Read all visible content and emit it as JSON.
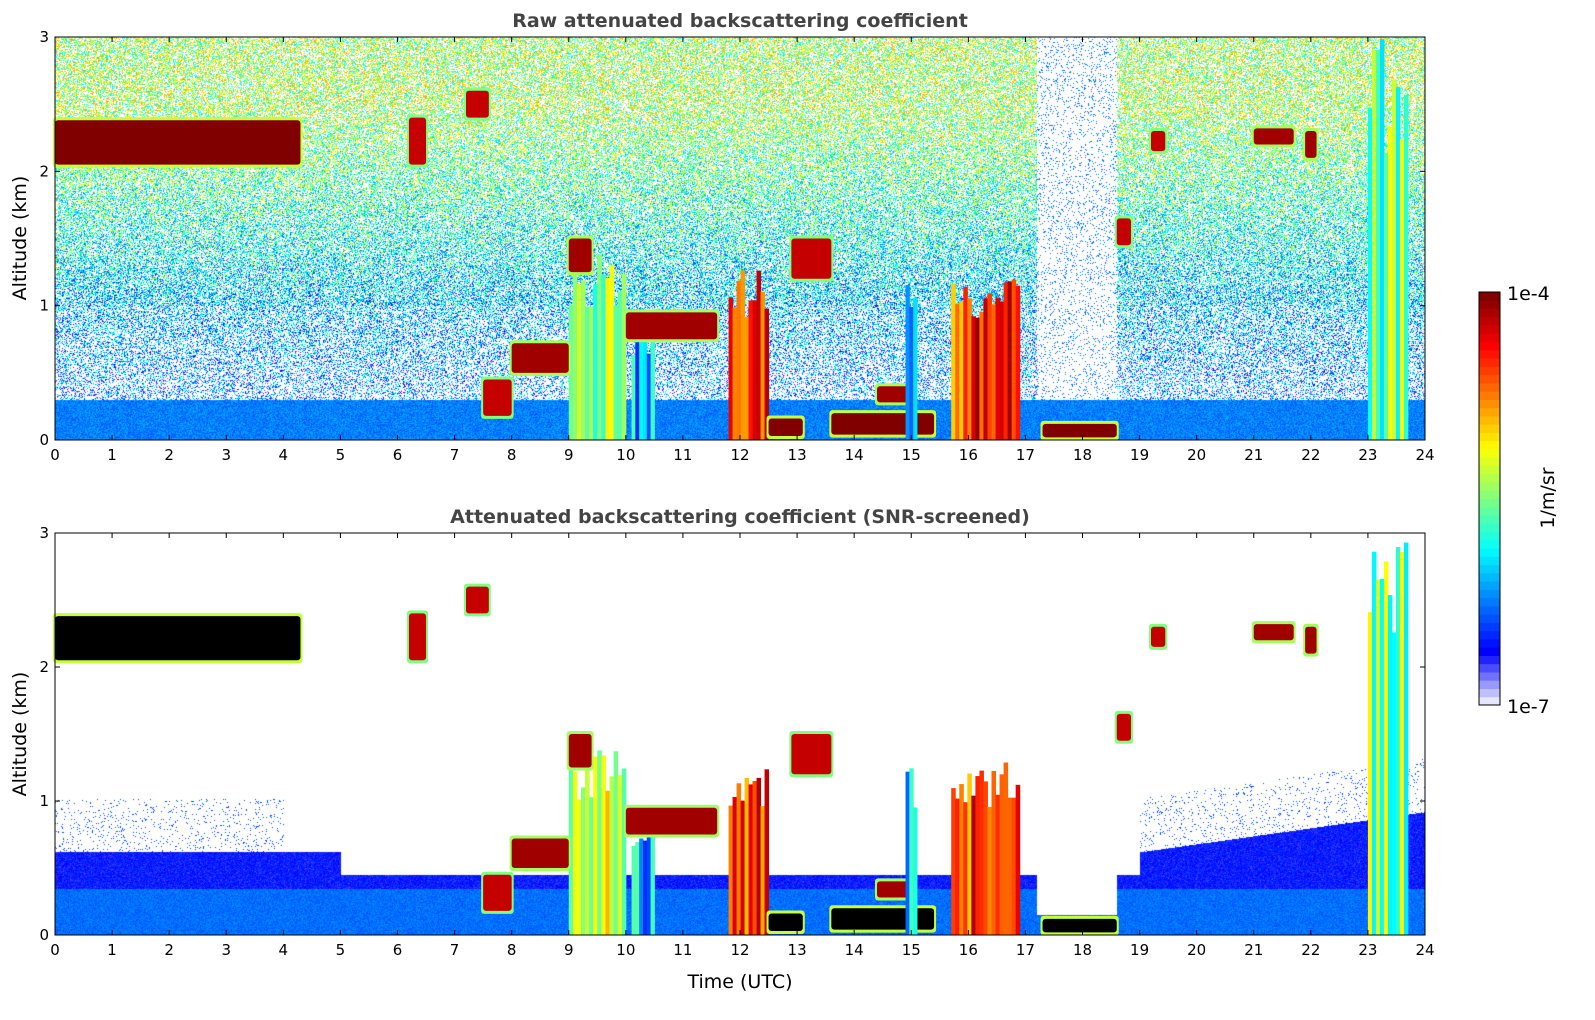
{
  "chart_data": [
    {
      "type": "heatmap",
      "title": "Raw attenuated backscattering coefficient",
      "xlabel": "",
      "ylabel": "Altitude (km)",
      "xlim": [
        0,
        24
      ],
      "ylim": [
        0,
        3
      ],
      "xticks": [
        "0",
        "1",
        "2",
        "3",
        "4",
        "5",
        "6",
        "7",
        "8",
        "9",
        "10",
        "11",
        "12",
        "13",
        "14",
        "15",
        "16",
        "17",
        "18",
        "19",
        "20",
        "21",
        "22",
        "23",
        "24"
      ],
      "yticks": [
        "0",
        "1",
        "2",
        "3"
      ],
      "screened": false
    },
    {
      "type": "heatmap",
      "title": "Attenuated backscattering coefficient (SNR-screened)",
      "xlabel": "Time (UTC)",
      "ylabel": "Altitude (km)",
      "xlim": [
        0,
        24
      ],
      "ylim": [
        0,
        3
      ],
      "xticks": [
        "0",
        "1",
        "2",
        "3",
        "4",
        "5",
        "6",
        "7",
        "8",
        "9",
        "10",
        "11",
        "12",
        "13",
        "14",
        "15",
        "16",
        "17",
        "18",
        "19",
        "20",
        "21",
        "22",
        "23",
        "24"
      ],
      "yticks": [
        "0",
        "1",
        "2",
        "3"
      ],
      "screened": true
    }
  ],
  "colorbar": {
    "label": "1/m/sr",
    "min_label": "1e-7",
    "max_label": "1e-4",
    "min": 1e-07,
    "max": 0.0001,
    "scale": "log",
    "colormap": "jet"
  },
  "features": [
    {
      "t": [
        0,
        4.3
      ],
      "alt": [
        2.05,
        2.38
      ],
      "log": -4.0,
      "kind": "cirrus"
    },
    {
      "t": [
        6.2,
        6.5
      ],
      "alt": [
        2.05,
        2.4
      ],
      "log": -4.2,
      "kind": "cloud"
    },
    {
      "t": [
        7.2,
        7.6
      ],
      "alt": [
        2.4,
        2.6
      ],
      "log": -4.2,
      "kind": "cloud"
    },
    {
      "t": [
        9.0,
        10.0
      ],
      "alt": [
        0,
        1.4
      ],
      "log": -5.4,
      "kind": "column"
    },
    {
      "t": [
        10.1,
        10.5
      ],
      "alt": [
        0,
        0.9
      ],
      "log": -6.0,
      "kind": "column"
    },
    {
      "t": [
        7.5,
        8.0
      ],
      "alt": [
        0.18,
        0.45
      ],
      "log": -4.2,
      "kind": "cloud"
    },
    {
      "t": [
        8.0,
        9.0
      ],
      "alt": [
        0.5,
        0.72
      ],
      "log": -4.1,
      "kind": "cloud"
    },
    {
      "t": [
        9.0,
        9.4
      ],
      "alt": [
        1.25,
        1.5
      ],
      "log": -4.1,
      "kind": "cloud"
    },
    {
      "t": [
        10.0,
        11.6
      ],
      "alt": [
        0.75,
        0.95
      ],
      "log": -4.1,
      "kind": "cloud"
    },
    {
      "t": [
        11.8,
        12.5
      ],
      "alt": [
        0,
        1.3
      ],
      "log": -4.6,
      "kind": "column"
    },
    {
      "t": [
        12.5,
        13.1
      ],
      "alt": [
        0.03,
        0.16
      ],
      "log": -4.0,
      "kind": "cloud"
    },
    {
      "t": [
        12.9,
        13.6
      ],
      "alt": [
        1.2,
        1.5
      ],
      "log": -4.2,
      "kind": "cloud"
    },
    {
      "t": [
        13.6,
        15.4
      ],
      "alt": [
        0.04,
        0.2
      ],
      "log": -4.0,
      "kind": "cloud"
    },
    {
      "t": [
        14.4,
        15.0
      ],
      "alt": [
        0.28,
        0.4
      ],
      "log": -4.1,
      "kind": "cloud"
    },
    {
      "t": [
        14.9,
        15.1
      ],
      "alt": [
        0,
        1.3
      ],
      "log": -6.0,
      "kind": "column"
    },
    {
      "t": [
        15.7,
        16.9
      ],
      "alt": [
        0,
        1.3
      ],
      "log": -4.5,
      "kind": "column"
    },
    {
      "t": [
        17.3,
        18.6
      ],
      "alt": [
        0.02,
        0.12
      ],
      "log": -4.0,
      "kind": "cloud"
    },
    {
      "t": [
        18.6,
        18.85
      ],
      "alt": [
        1.45,
        1.65
      ],
      "log": -4.2,
      "kind": "cloud"
    },
    {
      "t": [
        19.2,
        19.45
      ],
      "alt": [
        2.15,
        2.3
      ],
      "log": -4.2,
      "kind": "cloud"
    },
    {
      "t": [
        21.0,
        21.7
      ],
      "alt": [
        2.2,
        2.32
      ],
      "log": -4.1,
      "kind": "cloud"
    },
    {
      "t": [
        21.9,
        22.1
      ],
      "alt": [
        2.1,
        2.3
      ],
      "log": -4.1,
      "kind": "cloud"
    },
    {
      "t": [
        23.0,
        23.7
      ],
      "alt": [
        0,
        3.0
      ],
      "log": -5.5,
      "kind": "column"
    }
  ]
}
